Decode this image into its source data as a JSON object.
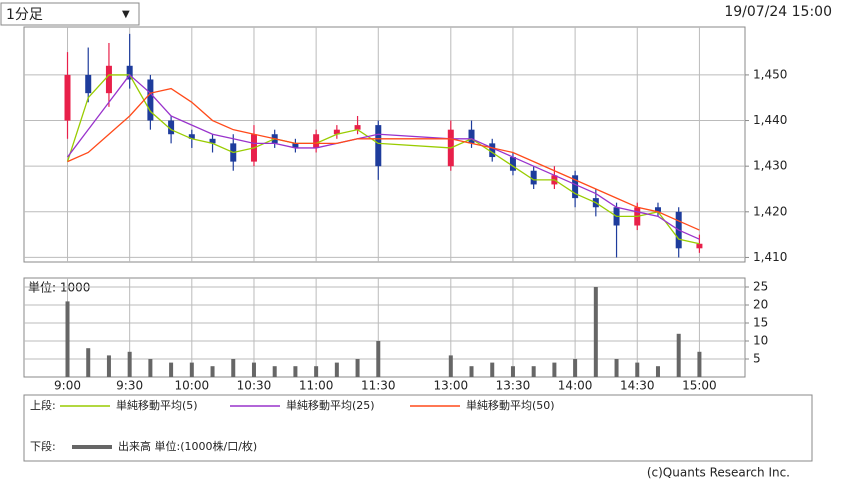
{
  "header": {
    "interval": "1分足",
    "arrow": "▼",
    "datetime": "19/07/24 15:00"
  },
  "chart_data": [
    {
      "type": "candlestick",
      "up_color": "#e8204a",
      "down_color": "#1e3c9c",
      "x": [
        0,
        10,
        20,
        30,
        40,
        50,
        60,
        70,
        80,
        90,
        100,
        110,
        120,
        130,
        140,
        150,
        185,
        195,
        205,
        215,
        225,
        235,
        245,
        255,
        265,
        275,
        285,
        295,
        305
      ],
      "open": [
        1440,
        1450,
        1446,
        1452,
        1449,
        1440,
        1437,
        1436,
        1435,
        1431,
        1437,
        1435,
        1434,
        1437,
        1438,
        1439,
        1430,
        1438,
        1435,
        1432,
        1429,
        1426,
        1428,
        1423,
        1421,
        1417,
        1421,
        1420,
        1412
      ],
      "high": [
        1455,
        1456,
        1457,
        1459,
        1450,
        1441,
        1438,
        1437,
        1437,
        1439,
        1438,
        1436,
        1438,
        1439,
        1441,
        1440,
        1440,
        1440,
        1436,
        1433,
        1430,
        1430,
        1429,
        1425,
        1422,
        1422,
        1422,
        1421,
        1415
      ],
      "low": [
        1436,
        1444,
        1443,
        1447,
        1438,
        1435,
        1434,
        1433,
        1429,
        1430,
        1434,
        1433,
        1433,
        1436,
        1437,
        1427,
        1429,
        1434,
        1431,
        1428,
        1425,
        1425,
        1421,
        1419,
        1410,
        1416,
        1419,
        1410,
        1411
      ],
      "close": [
        1450,
        1446,
        1452,
        1449,
        1440,
        1437,
        1436,
        1435,
        1431,
        1437,
        1435,
        1434,
        1437,
        1438,
        1439,
        1430,
        1438,
        1435,
        1432,
        1429,
        1426,
        1428,
        1423,
        1421,
        1417,
        1421,
        1420,
        1412,
        1413
      ],
      "series": [
        {
          "name": "単純移動平均(5)",
          "color": "#99cc00",
          "values": [
            1431,
            1445,
            1450,
            1450,
            1442,
            1438,
            1436,
            1435,
            1433,
            1434,
            1436,
            1435,
            1435,
            1437,
            1438,
            1435,
            1434,
            1436,
            1433,
            1430,
            1427,
            1427,
            1424,
            1422,
            1419,
            1419,
            1420,
            1414,
            1413
          ]
        },
        {
          "name": "単純移動平均(25)",
          "color": "#9933cc",
          "values": [
            1432,
            1438,
            1444,
            1450,
            1446,
            1441,
            1439,
            1437,
            1436,
            1435,
            1435,
            1434,
            1434,
            1435,
            1436,
            1437,
            1436,
            1436,
            1434,
            1432,
            1430,
            1428,
            1426,
            1424,
            1421,
            1420,
            1419,
            1416,
            1414
          ]
        },
        {
          "name": "単純移動平均(50)",
          "color": "#ff4a1a",
          "values": [
            1431,
            1433,
            1437,
            1441,
            1446,
            1447,
            1444,
            1440,
            1438,
            1437,
            1436,
            1435,
            1435,
            1435,
            1436,
            1436,
            1436,
            1435,
            1434,
            1433,
            1431,
            1429,
            1427,
            1425,
            1423,
            1421,
            1420,
            1418,
            1416
          ]
        }
      ],
      "legend_prefix": "上段:",
      "xlim": [
        -21,
        327
      ],
      "ylim": [
        1409,
        1460.5
      ],
      "yticks": [
        {
          "value": 1410,
          "label": "1,410"
        },
        {
          "value": 1420,
          "label": "1,420"
        },
        {
          "value": 1430,
          "label": "1,430"
        },
        {
          "value": 1440,
          "label": "1,440"
        },
        {
          "value": 1450,
          "label": "1,450"
        }
      ],
      "grid": true
    },
    {
      "type": "bar",
      "unit_label": "単位: 1000",
      "color": "#666666",
      "x": [
        0,
        10,
        20,
        30,
        40,
        50,
        60,
        70,
        80,
        90,
        100,
        110,
        120,
        130,
        140,
        150,
        185,
        195,
        205,
        215,
        225,
        235,
        245,
        255,
        265,
        275,
        285,
        295,
        305
      ],
      "values": [
        21,
        8,
        6,
        7,
        5,
        4,
        4,
        3,
        5,
        4,
        3,
        3,
        3,
        4,
        5,
        10,
        6,
        3,
        4,
        3,
        3,
        4,
        5,
        25,
        5,
        4,
        3,
        12,
        7
      ],
      "legend_prefix": "下段:",
      "legend_name": "出来高 単位:(1000株/口/枚)",
      "xlim": [
        -21,
        327
      ],
      "ylim": [
        0,
        27.5
      ],
      "yticks": [
        5,
        10,
        15,
        20,
        25
      ],
      "xticks": [
        {
          "value": 0,
          "label": "9:00"
        },
        {
          "value": 30,
          "label": "9:30"
        },
        {
          "value": 60,
          "label": "10:00"
        },
        {
          "value": 90,
          "label": "10:30"
        },
        {
          "value": 120,
          "label": "11:00"
        },
        {
          "value": 150,
          "label": "11:30"
        },
        {
          "value": 185,
          "label": "13:00"
        },
        {
          "value": 215,
          "label": "13:30"
        },
        {
          "value": 245,
          "label": "14:00"
        },
        {
          "value": 275,
          "label": "14:30"
        },
        {
          "value": 305,
          "label": "15:00"
        }
      ],
      "grid": true
    }
  ],
  "footer": "(c)Quants Research Inc."
}
